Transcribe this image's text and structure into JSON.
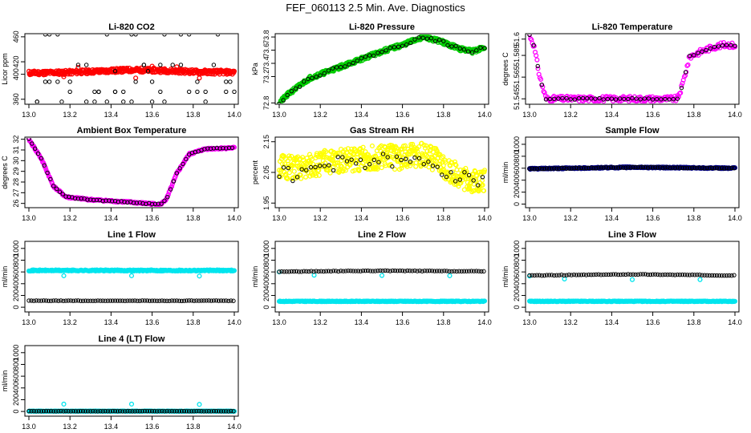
{
  "page": {
    "title": "FEF_060113  2.5 Min. Ave. Diagnostics"
  },
  "chart_data": [
    {
      "id": "p1",
      "type": "scatter",
      "title": "Li-820 CO2",
      "ylabel": "Licor ppm",
      "xlim": [
        13.0,
        14.0
      ],
      "ylim": [
        352,
        465
      ],
      "xticks": [
        "13.0",
        "13.2",
        "13.4",
        "13.6",
        "13.8",
        "14.0"
      ],
      "yticks": [
        {
          "v": 360,
          "label": "360"
        },
        {
          "v": 400,
          "label": "400"
        },
        {
          "v": 420,
          "label": "420"
        },
        {
          "v": 460,
          "label": "460"
        }
      ],
      "colored_color": "#ff0000",
      "colored": {
        "kind": "band",
        "base": [
          [
            13.0,
            402
          ],
          [
            13.2,
            403
          ],
          [
            13.35,
            405
          ],
          [
            13.5,
            407
          ],
          [
            13.65,
            406
          ],
          [
            13.8,
            404
          ],
          [
            14.0,
            403
          ]
        ],
        "spread": 3.5,
        "n": 420,
        "seed": 11,
        "extra": [
          [
            13.17,
            396
          ],
          [
            13.52,
            394
          ],
          [
            13.6,
            413
          ],
          [
            13.72,
            412
          ],
          [
            13.83,
            394
          ],
          [
            13.24,
            411
          ]
        ]
      },
      "black": {
        "kind": "cols",
        "levels": [
          464,
          415,
          388,
          372,
          356
        ],
        "xs": [
          13.04,
          13.08,
          13.1,
          13.14,
          13.16,
          13.2,
          13.24,
          13.28,
          13.32,
          13.34,
          13.38,
          13.42,
          13.46,
          13.5,
          13.52,
          13.56,
          13.6,
          13.64,
          13.66,
          13.7,
          13.74,
          13.78,
          13.82,
          13.86,
          13.9,
          13.92,
          13.96,
          13.98,
          14.0
        ],
        "seed": 5,
        "n": 60,
        "extra": [
          [
            13.42,
            405
          ],
          [
            13.58,
            405
          ]
        ]
      }
    },
    {
      "id": "p2",
      "type": "scatter",
      "title": "Li-820 Pressure",
      "ylabel": "kPa",
      "xlim": [
        13.0,
        14.0
      ],
      "ylim": [
        72.78,
        73.85
      ],
      "xticks": [
        "13.0",
        "13.2",
        "13.4",
        "13.6",
        "13.8",
        "14.0"
      ],
      "yticks": [
        {
          "v": 72.8,
          "label": "72.8"
        },
        {
          "v": 73.2,
          "label": "73.2"
        },
        {
          "v": 73.4,
          "label": "73.4"
        },
        {
          "v": 73.6,
          "label": "73.6"
        },
        {
          "v": 73.8,
          "label": "73.8"
        }
      ],
      "colored_color": "#00cc00",
      "colored": {
        "kind": "band",
        "base": [
          [
            13.0,
            72.8
          ],
          [
            13.05,
            72.95
          ],
          [
            13.15,
            73.18
          ],
          [
            13.3,
            73.35
          ],
          [
            13.5,
            73.58
          ],
          [
            13.6,
            73.68
          ],
          [
            13.7,
            73.8
          ],
          [
            13.78,
            73.74
          ],
          [
            13.88,
            73.62
          ],
          [
            13.94,
            73.58
          ],
          [
            14.0,
            73.64
          ]
        ],
        "spread": 0.03,
        "n": 420,
        "seed": 21
      },
      "black": {
        "kind": "line",
        "base": [
          [
            13.0,
            72.8
          ],
          [
            13.05,
            72.95
          ],
          [
            13.15,
            73.18
          ],
          [
            13.3,
            73.35
          ],
          [
            13.5,
            73.58
          ],
          [
            13.6,
            73.68
          ],
          [
            13.7,
            73.8
          ],
          [
            13.78,
            73.74
          ],
          [
            13.88,
            73.62
          ],
          [
            13.94,
            73.58
          ],
          [
            14.0,
            73.64
          ]
        ],
        "spread": 0.02,
        "step": 0.02,
        "seed": 22
      }
    },
    {
      "id": "p3",
      "type": "scatter",
      "title": "Li-820 Temperature",
      "ylabel": "degrees C",
      "xlim": [
        13.0,
        14.0
      ],
      "ylim": [
        51.54,
        51.605
      ],
      "xticks": [
        "13.0",
        "13.2",
        "13.4",
        "13.6",
        "13.8",
        "14.0"
      ],
      "yticks": [
        {
          "v": 51.545,
          "label": "51.545"
        },
        {
          "v": 51.565,
          "label": "51.565"
        },
        {
          "v": 51.585,
          "label": "51.585"
        },
        {
          "v": 51.6,
          "label": "51.6"
        }
      ],
      "colored_color": "#ff00ff",
      "colored": {
        "kind": "band",
        "base": [
          [
            13.0,
            51.604
          ],
          [
            13.02,
            51.595
          ],
          [
            13.05,
            51.565
          ],
          [
            13.08,
            51.545
          ],
          [
            13.1,
            51.545
          ],
          [
            13.72,
            51.545
          ],
          [
            13.74,
            51.555
          ],
          [
            13.78,
            51.584
          ],
          [
            13.84,
            51.589
          ],
          [
            13.9,
            51.593
          ],
          [
            13.96,
            51.595
          ],
          [
            14.0,
            51.594
          ]
        ],
        "spread": 0.0025,
        "n": 220,
        "seed": 31
      },
      "black": {
        "kind": "line",
        "base": [
          [
            13.0,
            51.604
          ],
          [
            13.02,
            51.595
          ],
          [
            13.05,
            51.565
          ],
          [
            13.08,
            51.545
          ],
          [
            13.1,
            51.545
          ],
          [
            13.72,
            51.545
          ],
          [
            13.74,
            51.555
          ],
          [
            13.78,
            51.584
          ],
          [
            13.84,
            51.589
          ],
          [
            13.9,
            51.593
          ],
          [
            13.96,
            51.595
          ],
          [
            14.0,
            51.594
          ]
        ],
        "spread": 0.0006,
        "step": 0.02,
        "seed": 32
      }
    },
    {
      "id": "p4",
      "type": "scatter",
      "title": "Ambient Box Temperature",
      "ylabel": "degrees C",
      "xlim": [
        13.0,
        14.0
      ],
      "ylim": [
        25.6,
        32.2
      ],
      "xticks": [
        "13.0",
        "13.2",
        "13.4",
        "13.6",
        "13.8",
        "14.0"
      ],
      "yticks": [
        {
          "v": 26,
          "label": "26"
        },
        {
          "v": 27,
          "label": "27"
        },
        {
          "v": 28,
          "label": "28"
        },
        {
          "v": 29,
          "label": "29"
        },
        {
          "v": 30,
          "label": "30"
        },
        {
          "v": 31,
          "label": "31"
        },
        {
          "v": 32,
          "label": "32"
        }
      ],
      "colored_color": "#ff00ff",
      "colored": {
        "kind": "band",
        "base": [
          [
            13.0,
            32.0
          ],
          [
            13.06,
            30.2
          ],
          [
            13.12,
            27.6
          ],
          [
            13.18,
            26.6
          ],
          [
            13.3,
            26.35
          ],
          [
            13.5,
            26.1
          ],
          [
            13.64,
            25.9
          ],
          [
            13.67,
            26.4
          ],
          [
            13.72,
            28.8
          ],
          [
            13.78,
            30.6
          ],
          [
            13.86,
            31.1
          ],
          [
            14.0,
            31.2
          ]
        ],
        "spread": 0.08,
        "n": 300,
        "seed": 41
      },
      "black": {
        "kind": "line",
        "base": [
          [
            13.0,
            32.0
          ],
          [
            13.06,
            30.2
          ],
          [
            13.12,
            27.6
          ],
          [
            13.18,
            26.6
          ],
          [
            13.3,
            26.35
          ],
          [
            13.5,
            26.1
          ],
          [
            13.64,
            25.9
          ],
          [
            13.67,
            26.4
          ],
          [
            13.72,
            28.8
          ],
          [
            13.78,
            30.6
          ],
          [
            13.86,
            31.1
          ],
          [
            14.0,
            31.2
          ]
        ],
        "spread": 0.05,
        "step": 0.015,
        "seed": 42
      }
    },
    {
      "id": "p5",
      "type": "scatter",
      "title": "Gas Stream RH",
      "ylabel": "percent",
      "xlim": [
        13.0,
        14.0
      ],
      "ylim": [
        1.935,
        2.165
      ],
      "xticks": [
        "13.0",
        "13.2",
        "13.4",
        "13.6",
        "13.8",
        "14.0"
      ],
      "yticks": [
        {
          "v": 1.95,
          "label": "1.95"
        },
        {
          "v": 2.05,
          "label": "2.05"
        },
        {
          "v": 2.15,
          "label": "2.15"
        }
      ],
      "colored_color": "#ffff00",
      "colored": {
        "kind": "band",
        "base": [
          [
            13.0,
            2.07
          ],
          [
            13.1,
            2.06
          ],
          [
            13.2,
            2.08
          ],
          [
            13.3,
            2.09
          ],
          [
            13.5,
            2.1
          ],
          [
            13.6,
            2.1
          ],
          [
            13.72,
            2.11
          ],
          [
            13.8,
            2.07
          ],
          [
            13.9,
            2.03
          ],
          [
            14.0,
            2.02
          ]
        ],
        "spread": 0.04,
        "n": 520,
        "seed": 51
      },
      "black": {
        "kind": "line",
        "base": [
          [
            13.0,
            2.05
          ],
          [
            13.1,
            2.04
          ],
          [
            13.2,
            2.07
          ],
          [
            13.3,
            2.08
          ],
          [
            13.5,
            2.09
          ],
          [
            13.6,
            2.08
          ],
          [
            13.72,
            2.09
          ],
          [
            13.8,
            2.06
          ],
          [
            13.9,
            2.03
          ],
          [
            14.0,
            2.02
          ]
        ],
        "spread": 0.022,
        "step": 0.022,
        "seed": 52
      }
    },
    {
      "id": "p6",
      "type": "scatter",
      "title": "Sample Flow",
      "ylabel": "ml/min",
      "xlim": [
        13.0,
        14.0
      ],
      "ylim": [
        -60,
        1120
      ],
      "xticks": [
        "13.0",
        "13.2",
        "13.4",
        "13.6",
        "13.8",
        "14.0"
      ],
      "yticks": [
        {
          "v": 0,
          "label": "0"
        },
        {
          "v": 200,
          "label": "200"
        },
        {
          "v": 400,
          "label": "400"
        },
        {
          "v": 600,
          "label": "600"
        },
        {
          "v": 800,
          "label": "800"
        },
        {
          "v": 1000,
          "label": "1000"
        }
      ],
      "colored_color": "#00008b",
      "colored": {
        "kind": "band",
        "base": [
          [
            13.0,
            590
          ],
          [
            13.5,
            615
          ],
          [
            14.0,
            600
          ]
        ],
        "spread": 10,
        "n": 300,
        "seed": 61
      },
      "black": {
        "kind": "line",
        "base": [
          [
            13.0,
            590
          ],
          [
            13.5,
            615
          ],
          [
            14.0,
            600
          ]
        ],
        "spread": 5,
        "step": 0.012,
        "seed": 62
      }
    },
    {
      "id": "p7",
      "type": "scatter",
      "title": "Line 1 Flow",
      "ylabel": "ml/min",
      "xlim": [
        13.0,
        14.0
      ],
      "ylim": [
        -80,
        1120
      ],
      "xticks": [
        "13.0",
        "13.2",
        "13.4",
        "13.6",
        "13.8",
        "14.0"
      ],
      "yticks": [
        {
          "v": 0,
          "label": "0"
        },
        {
          "v": 200,
          "label": "200"
        },
        {
          "v": 400,
          "label": "400"
        },
        {
          "v": 600,
          "label": "600"
        },
        {
          "v": 800,
          "label": "800"
        },
        {
          "v": 1000,
          "label": "1000"
        }
      ],
      "colored_color": "#00e5ee",
      "colored": {
        "kind": "band",
        "base": [
          [
            13.0,
            625
          ],
          [
            14.0,
            625
          ]
        ],
        "spread": 10,
        "n": 300,
        "seed": 71,
        "extra": [
          [
            13.17,
            535
          ],
          [
            13.5,
            535
          ],
          [
            13.83,
            530
          ]
        ]
      },
      "black": {
        "kind": "line",
        "base": [
          [
            13.0,
            110
          ],
          [
            14.0,
            110
          ]
        ],
        "spread": 3,
        "step": 0.012,
        "seed": 72
      }
    },
    {
      "id": "p8",
      "type": "scatter",
      "title": "Line 2 Flow",
      "ylabel": "ml/min",
      "xlim": [
        13.0,
        14.0
      ],
      "ylim": [
        -80,
        1120
      ],
      "xticks": [
        "13.0",
        "13.2",
        "13.4",
        "13.6",
        "13.8",
        "14.0"
      ],
      "yticks": [
        {
          "v": 0,
          "label": "0"
        },
        {
          "v": 200,
          "label": "200"
        },
        {
          "v": 400,
          "label": "400"
        },
        {
          "v": 600,
          "label": "600"
        },
        {
          "v": 800,
          "label": "800"
        },
        {
          "v": 1000,
          "label": "1000"
        }
      ],
      "colored_color": "#00e5ee",
      "colored": {
        "kind": "band",
        "base": [
          [
            13.0,
            100
          ],
          [
            14.0,
            100
          ]
        ],
        "spread": 6,
        "n": 300,
        "seed": 81,
        "extra": [
          [
            13.0,
            600
          ],
          [
            13.17,
            545
          ],
          [
            13.5,
            540
          ],
          [
            13.83,
            535
          ]
        ]
      },
      "black": {
        "kind": "line",
        "base": [
          [
            13.0,
            605
          ],
          [
            13.5,
            620
          ],
          [
            14.0,
            610
          ]
        ],
        "spread": 5,
        "step": 0.012,
        "seed": 82
      }
    },
    {
      "id": "p9",
      "type": "scatter",
      "title": "Line 3 Flow",
      "ylabel": "ml/min",
      "xlim": [
        13.0,
        14.0
      ],
      "ylim": [
        -80,
        1120
      ],
      "xticks": [
        "13.0",
        "13.2",
        "13.4",
        "13.6",
        "13.8",
        "14.0"
      ],
      "yticks": [
        {
          "v": 0,
          "label": "0"
        },
        {
          "v": 200,
          "label": "200"
        },
        {
          "v": 400,
          "label": "400"
        },
        {
          "v": 600,
          "label": "600"
        },
        {
          "v": 800,
          "label": "800"
        },
        {
          "v": 1000,
          "label": "1000"
        }
      ],
      "colored_color": "#00e5ee",
      "colored": {
        "kind": "band",
        "base": [
          [
            13.0,
            100
          ],
          [
            14.0,
            100
          ]
        ],
        "spread": 6,
        "n": 300,
        "seed": 91,
        "extra": [
          [
            13.0,
            530
          ],
          [
            13.17,
            480
          ],
          [
            13.5,
            470
          ],
          [
            13.83,
            470
          ]
        ]
      },
      "black": {
        "kind": "line",
        "base": [
          [
            13.02,
            540
          ],
          [
            13.5,
            560
          ],
          [
            14.0,
            540
          ]
        ],
        "spread": 5,
        "step": 0.012,
        "seed": 92
      }
    },
    {
      "id": "p10",
      "type": "scatter",
      "title": "Line 4 (LT) Flow",
      "ylabel": "ml/min",
      "xlim": [
        13.0,
        14.0
      ],
      "ylim": [
        -80,
        1120
      ],
      "xticks": [
        "13.0",
        "13.2",
        "13.4",
        "13.6",
        "13.8",
        "14.0"
      ],
      "yticks": [
        {
          "v": 0,
          "label": "0"
        },
        {
          "v": 200,
          "label": "200"
        },
        {
          "v": 400,
          "label": "400"
        },
        {
          "v": 600,
          "label": "600"
        },
        {
          "v": 800,
          "label": "800"
        },
        {
          "v": 1000,
          "label": "1000"
        }
      ],
      "colored_color": "#00e5ee",
      "colored": {
        "kind": "band",
        "base": [
          [
            13.0,
            5
          ],
          [
            14.0,
            5
          ]
        ],
        "spread": 3,
        "n": 300,
        "seed": 101,
        "extra": [
          [
            13.17,
            125
          ],
          [
            13.5,
            125
          ],
          [
            13.83,
            120
          ]
        ]
      },
      "black": {
        "kind": "line",
        "base": [
          [
            13.0,
            5
          ],
          [
            14.0,
            5
          ]
        ],
        "spread": 2,
        "step": 0.012,
        "seed": 102
      }
    }
  ]
}
